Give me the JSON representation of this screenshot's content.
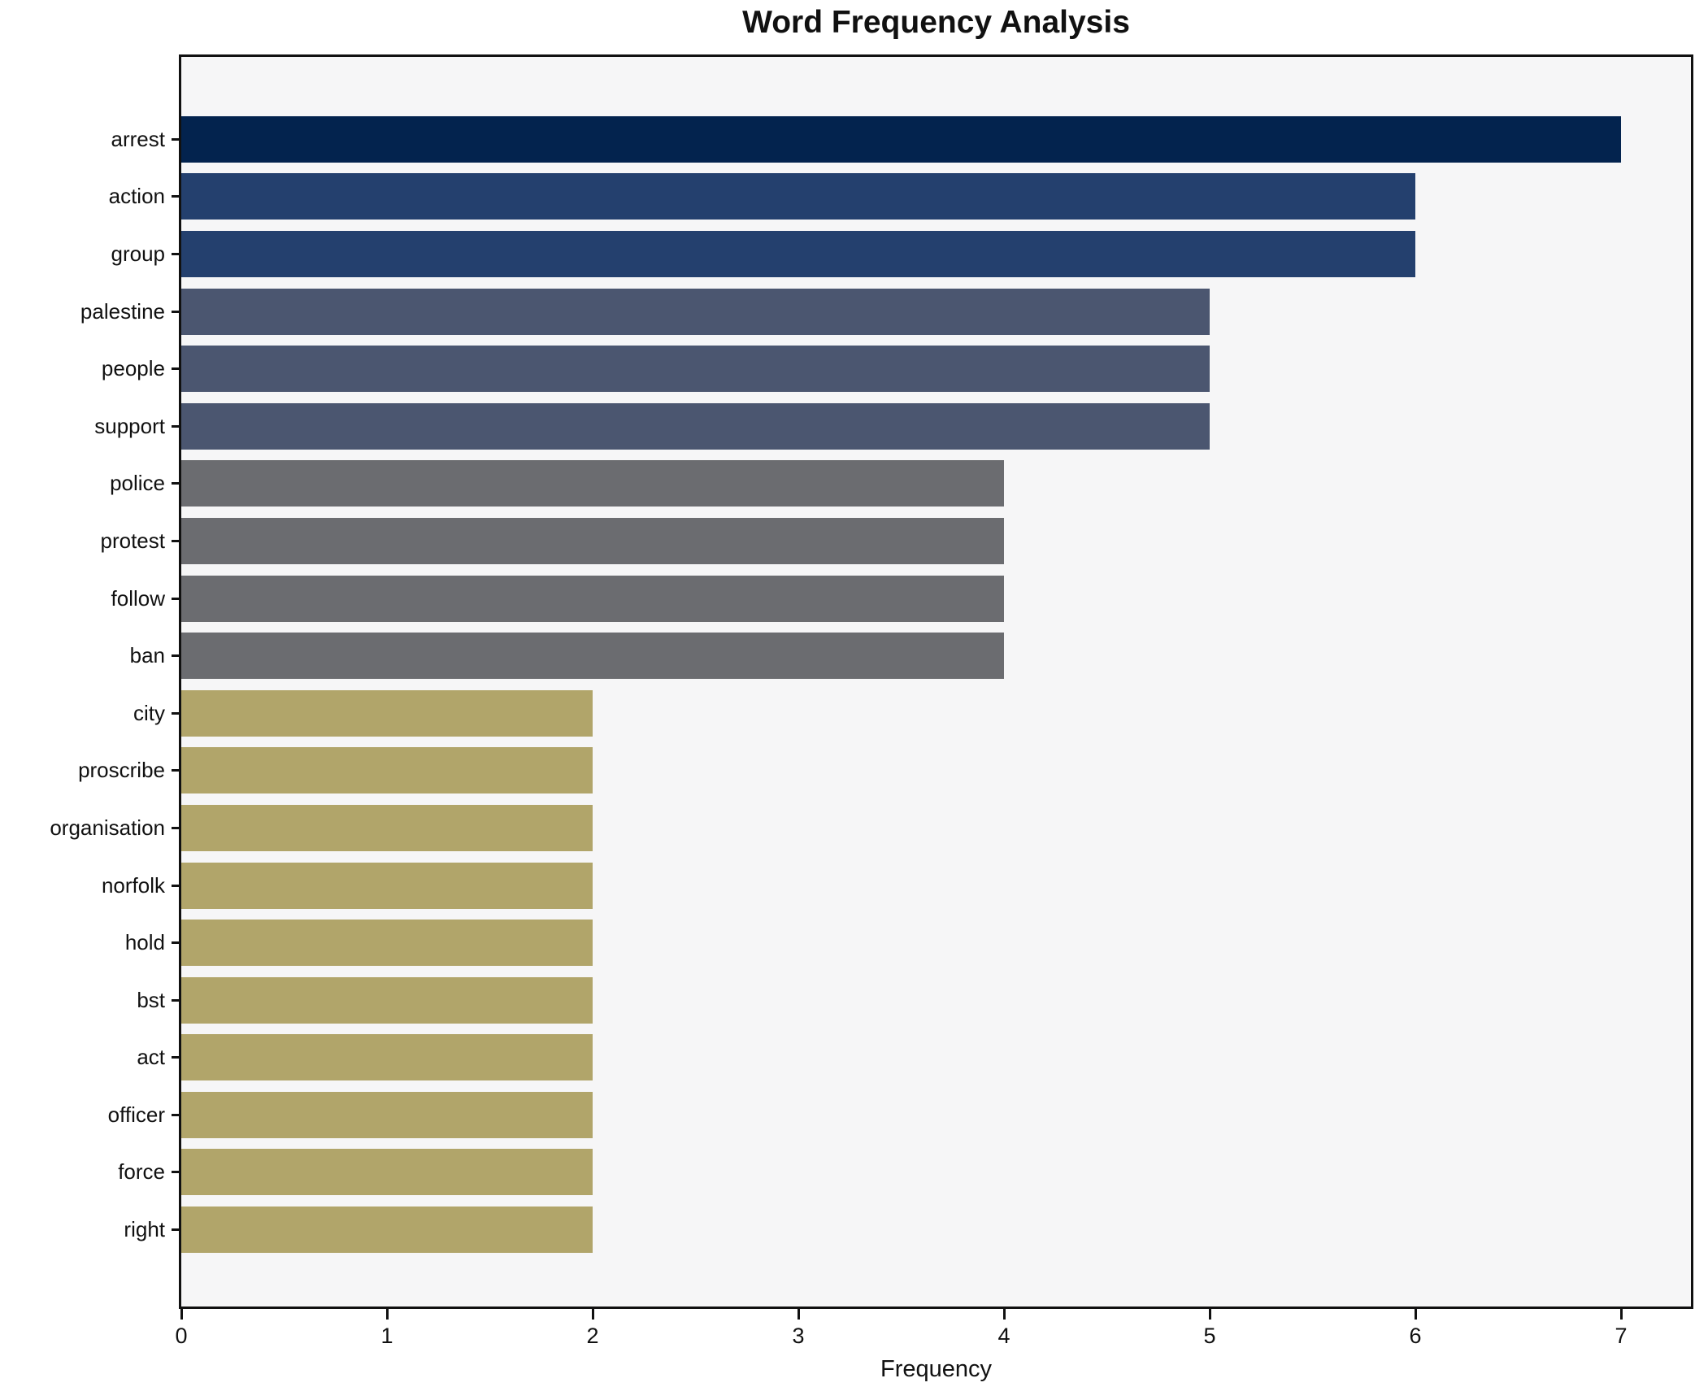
{
  "chart_data": {
    "type": "bar",
    "orientation": "horizontal",
    "title": "Word Frequency Analysis",
    "xlabel": "Frequency",
    "ylabel": "",
    "categories": [
      "arrest",
      "action",
      "group",
      "palestine",
      "people",
      "support",
      "police",
      "protest",
      "follow",
      "ban",
      "city",
      "proscribe",
      "organisation",
      "norfolk",
      "hold",
      "bst",
      "act",
      "officer",
      "force",
      "right"
    ],
    "values": [
      7,
      6,
      6,
      5,
      5,
      5,
      4,
      4,
      4,
      4,
      2,
      2,
      2,
      2,
      2,
      2,
      2,
      2,
      2,
      2
    ],
    "bar_colors": [
      "#03234e",
      "#24406e",
      "#24406e",
      "#4b5670",
      "#4b5670",
      "#4b5670",
      "#6b6c70",
      "#6b6c70",
      "#6b6c70",
      "#6b6c70",
      "#b1a56a",
      "#b1a56a",
      "#b1a56a",
      "#b1a56a",
      "#b1a56a",
      "#b1a56a",
      "#b1a56a",
      "#b1a56a",
      "#b1a56a",
      "#b1a56a"
    ],
    "xticks": [
      0,
      1,
      2,
      3,
      4,
      5,
      6,
      7
    ],
    "xlim": [
      0,
      7.34
    ],
    "grid": false,
    "legend": false,
    "plot_background": "#f6f6f7",
    "figure_background": "#ffffff",
    "text_color": "#111111"
  }
}
